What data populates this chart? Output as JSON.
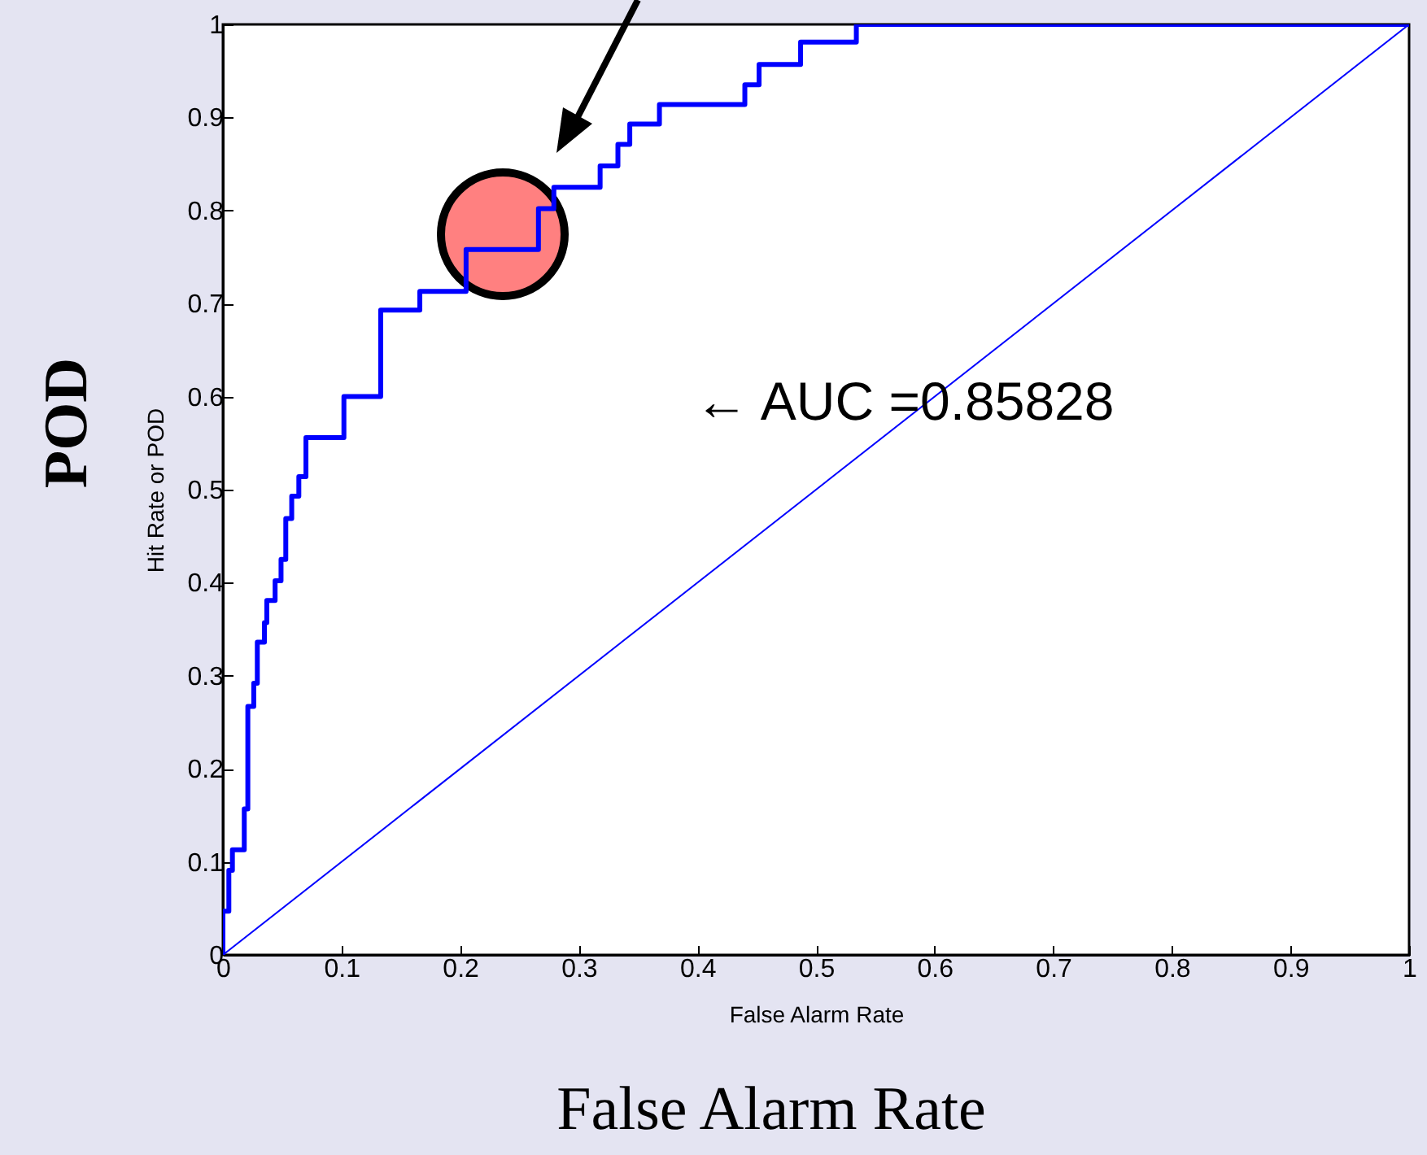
{
  "chart_data": {
    "type": "line",
    "xlabel": "False Alarm Rate",
    "ylabel": "Hit Rate or POD",
    "annotations": [
      "← AUC =0.85828",
      "POD",
      "False Alarm Rate"
    ],
    "series": [
      {
        "color": "#0000ff",
        "x": [
          0,
          0,
          0.005,
          0.005,
          0.008,
          0.008,
          0.018,
          0.018,
          0.021,
          0.021,
          0.026,
          0.026,
          0.029,
          0.029,
          0.035,
          0.035,
          0.037,
          0.037,
          0.044,
          0.044,
          0.049,
          0.049,
          0.053,
          0.053,
          0.058,
          0.058,
          0.064,
          0.064,
          0.07,
          0.07,
          0.102,
          0.102,
          0.133,
          0.133,
          0.166,
          0.166,
          0.205,
          0.205,
          0.266,
          0.266,
          0.279,
          0.279,
          0.318,
          0.318,
          0.333,
          0.333,
          0.343,
          0.343,
          0.368,
          0.368,
          0.44,
          0.44,
          0.452,
          0.452,
          0.487,
          0.487,
          0.534,
          0.534,
          1
        ],
        "values": [
          0,
          0.047,
          0.047,
          0.091,
          0.091,
          0.113,
          0.113,
          0.157,
          0.157,
          0.267,
          0.267,
          0.292,
          0.292,
          0.336,
          0.336,
          0.357,
          0.357,
          0.381,
          0.381,
          0.402,
          0.402,
          0.425,
          0.425,
          0.469,
          0.469,
          0.493,
          0.493,
          0.514,
          0.514,
          0.556,
          0.556,
          0.6,
          0.6,
          0.693,
          0.693,
          0.713,
          0.713,
          0.758,
          0.758,
          0.802,
          0.802,
          0.825,
          0.825,
          0.848,
          0.848,
          0.871,
          0.871,
          0.893,
          0.893,
          0.914,
          0.914,
          0.935,
          0.935,
          0.957,
          0.957,
          0.981,
          0.981,
          1,
          1
        ]
      },
      {
        "color": "#0000ff",
        "x": [
          0,
          1
        ],
        "values": [
          0,
          1
        ]
      }
    ],
    "xlim": [
      0,
      1
    ],
    "ylim": [
      0,
      1
    ],
    "xticks": [
      0,
      0.1,
      0.2,
      0.3,
      0.4,
      0.5,
      0.6,
      0.7,
      0.8,
      0.9,
      1
    ],
    "yticks": [
      0,
      0.1,
      0.2,
      0.3,
      0.4,
      0.5,
      0.6,
      0.7,
      0.8,
      0.9,
      1
    ],
    "grid": false,
    "marker": "none",
    "line_style": "solid"
  }
}
